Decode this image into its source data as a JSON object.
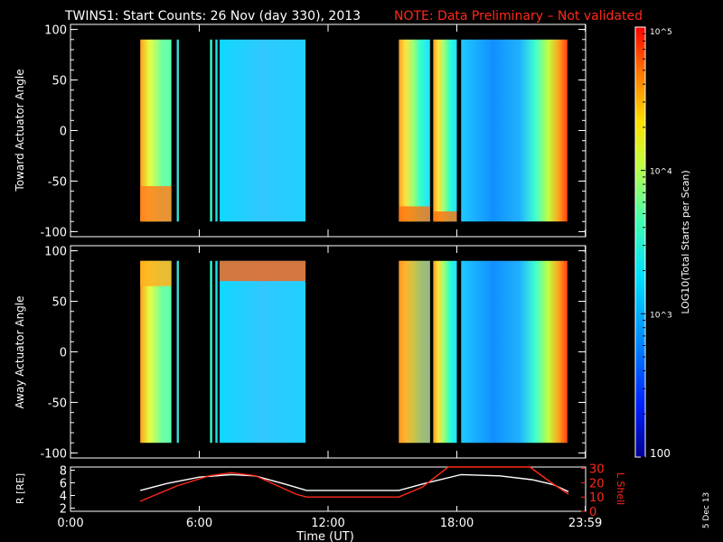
{
  "title": {
    "main": "TWINS1: Start Counts: 26 Nov (day 330), 2013",
    "note": "NOTE: Data Preliminary – Not validated"
  },
  "colorbar": {
    "label": "LOG10(Total Starts per Scan)",
    "tick_labels": [
      "100",
      "10^3",
      "10^4",
      "10^5"
    ],
    "range": [
      100,
      100000
    ],
    "scale": "log"
  },
  "chart_data": [
    {
      "type": "heatmap",
      "name": "Toward Actuator Angle",
      "ylabel": "Toward Actuator Angle",
      "xlim_hours": [
        0,
        24
      ],
      "ylim": [
        -105,
        105
      ],
      "yticks": [
        -100,
        -50,
        0,
        50,
        100
      ],
      "data_blocks_hours": [
        [
          3.25,
          4.7
        ],
        [
          4.95,
          5.05
        ],
        [
          6.5,
          6.6
        ],
        [
          6.75,
          6.85
        ],
        [
          6.95,
          10.95
        ],
        [
          15.3,
          16.75
        ],
        [
          16.9,
          18.0
        ],
        [
          18.2,
          23.15
        ]
      ],
      "intensity_note": "mostly ~10^3 (cyan/blue) with higher counts (~10^4, yellow/orange) near day segment edges and at low angles"
    },
    {
      "type": "heatmap",
      "name": "Away Actuator Angle",
      "ylabel": "Away Actuator Angle",
      "xlim_hours": [
        0,
        24
      ],
      "ylim": [
        -105,
        105
      ],
      "yticks": [
        -100,
        -50,
        0,
        50,
        100
      ],
      "data_blocks_hours": [
        [
          3.25,
          4.7
        ],
        [
          4.95,
          5.05
        ],
        [
          6.5,
          6.6
        ],
        [
          6.75,
          6.85
        ],
        [
          6.95,
          10.95
        ],
        [
          15.3,
          16.75
        ],
        [
          16.9,
          18.0
        ],
        [
          18.2,
          23.15
        ]
      ],
      "intensity_note": "high counts (red/orange) near +90 in early block; mostly cyan elsewhere"
    },
    {
      "type": "line",
      "name": "Orbit",
      "xlabel": "Time (UT)",
      "ylabel_left": "R [RE]",
      "ylabel_right": "L Shell",
      "x_tick_labels": [
        "0:00",
        "6:00",
        "12:00",
        "18:00",
        "23:59"
      ],
      "x_ticks_hours": [
        0,
        6,
        12,
        18,
        23.983
      ],
      "left_yticks": [
        2,
        4,
        6,
        8
      ],
      "left_ylim": [
        1.5,
        8.5
      ],
      "right_yticks": [
        0,
        10,
        20,
        30
      ],
      "right_ylim": [
        0,
        31
      ],
      "series": [
        {
          "axis": "left",
          "color": "#ffffff",
          "x": [
            3.25,
            4.5,
            6,
            7.5,
            8.6,
            10,
            11,
            15.3,
            16.5,
            18.2,
            20,
            21.5,
            22.5,
            23.2
          ],
          "y": [
            4.8,
            5.9,
            6.9,
            7.3,
            7.1,
            5.8,
            4.8,
            4.8,
            5.9,
            7.3,
            7.1,
            6.5,
            5.7,
            4.6
          ]
        },
        {
          "axis": "right",
          "color": "#ff2a1a",
          "x": [
            3.25,
            5,
            6.5,
            7.5,
            8.6,
            10.5,
            11,
            15.3,
            16.4,
            17.6,
            21.4,
            22.5,
            23.2
          ],
          "y": [
            7,
            18,
            25,
            27,
            25,
            12,
            10,
            10,
            17,
            31,
            31,
            19,
            12
          ]
        }
      ]
    }
  ],
  "footer": {
    "date_stamp": "5 Dec 13"
  },
  "colors": {
    "background": "#000000",
    "axes": "#ffffff",
    "note": "#ff2a1a",
    "lshell": "#ff2a1a"
  }
}
